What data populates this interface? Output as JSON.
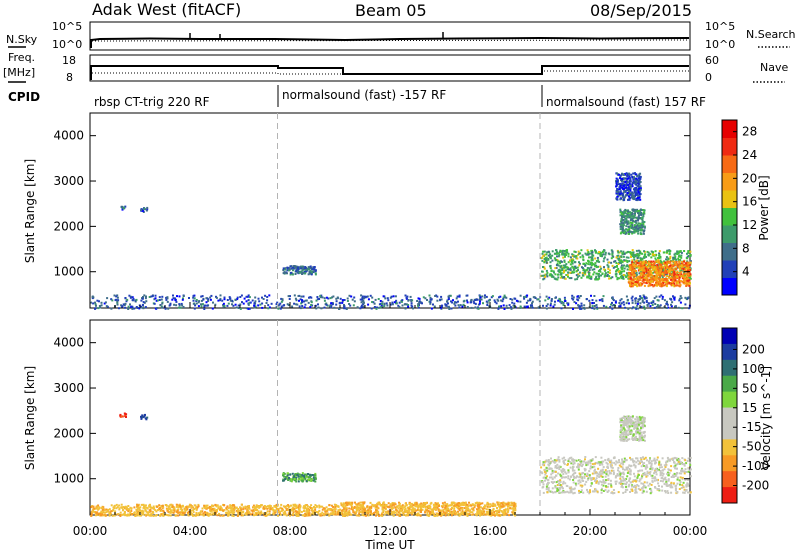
{
  "header": {
    "station": "Adak West (fitACF)",
    "beam": "Beam 05",
    "date": "08/Sep/2015"
  },
  "top_panel": {
    "nsky_label": "N.Sky",
    "nsky_top": "10^5",
    "nsky_bottom": "10^0",
    "nsearch_label": "N.Search",
    "nsearch_top": "10^5",
    "nsearch_bottom": "10^0"
  },
  "freq_panel": {
    "freq_label": "Freq.",
    "freq_unit": "[MHz]",
    "freq_top": "18",
    "freq_bottom": "8",
    "nave_label": "Nave",
    "nave_top": "60",
    "nave_bottom": "0"
  },
  "cpid_panel": {
    "label": "CPID",
    "segments": [
      {
        "text": "rbsp CT-trig 220 RF"
      },
      {
        "text": "normalsound (fast) -157 RF"
      },
      {
        "text": "normalsound (fast) 157 RF"
      }
    ]
  },
  "colors": {
    "power_scale": [
      "#0000ff",
      "#2140b8",
      "#3f6e8a",
      "#3d9b6b",
      "#41c13d",
      "#e9c212",
      "#f89c17",
      "#f76a15",
      "#ef2a12",
      "#e60000"
    ],
    "velocity_scale": [
      "#0000b4",
      "#1c3ca0",
      "#2f6f73",
      "#4aa948",
      "#7fd63d",
      "#c8c8c0",
      "#c8c8c0",
      "#f2c23a",
      "#f79a25",
      "#f7601e",
      "#ee1e14"
    ],
    "vertical_marker": "#b4b4b4"
  },
  "chart_data": [
    {
      "type": "heatmap",
      "title": "Power",
      "xlabel": "",
      "ylabel": "Slant Range [km]",
      "xlim": [
        "00:00",
        "24:00"
      ],
      "ylim": [
        200,
        4500
      ],
      "y_ticks": [
        "1000",
        "2000",
        "3000",
        "4000"
      ],
      "colorbar": {
        "label": "Power [dB]",
        "range": [
          0,
          30
        ],
        "ticks": [
          "4",
          "8",
          "12",
          "16",
          "20",
          "24",
          "28"
        ]
      },
      "vertical_markers": [
        "07:30",
        "18:00"
      ],
      "regions": [
        {
          "x": [
            "01:10",
            "01:25"
          ],
          "y": [
            2380,
            2460
          ],
          "level": 6
        },
        {
          "x": [
            "02:00",
            "02:15"
          ],
          "y": [
            2330,
            2430
          ],
          "level": 6
        },
        {
          "x": [
            "07:40",
            "09:00"
          ],
          "y": [
            960,
            1150
          ],
          "level": 7
        },
        {
          "x": [
            "00:00",
            "24:00"
          ],
          "y": [
            200,
            500
          ],
          "level": 6
        },
        {
          "x": [
            "18:00",
            "24:00"
          ],
          "y": [
            850,
            1500
          ],
          "level": 12
        },
        {
          "x": [
            "21:30",
            "24:00"
          ],
          "y": [
            700,
            1250
          ],
          "level": 21
        },
        {
          "x": [
            "21:10",
            "22:10"
          ],
          "y": [
            1850,
            2400
          ],
          "level": 10
        },
        {
          "x": [
            "21:00",
            "22:00"
          ],
          "y": [
            2600,
            3200
          ],
          "level": 5
        }
      ]
    },
    {
      "type": "heatmap",
      "title": "Velocity",
      "xlabel": "Time UT",
      "ylabel": "Slant Range [km]",
      "xlim": [
        "00:00",
        "24:00"
      ],
      "ylim": [
        200,
        4500
      ],
      "x_ticks": [
        "00:00",
        "04:00",
        "08:00",
        "12:00",
        "16:00",
        "20:00",
        "00:00"
      ],
      "y_ticks": [
        "1000",
        "2000",
        "3000",
        "4000"
      ],
      "colorbar": {
        "label": "Velocity [m s^-1]",
        "ticks": [
          "200",
          "100",
          "50",
          "15",
          "-15",
          "-50",
          "-100",
          "-200"
        ]
      },
      "vertical_markers": [
        "07:30",
        "18:00"
      ],
      "regions": [
        {
          "x": [
            "01:10",
            "01:25"
          ],
          "y": [
            2380,
            2460
          ],
          "velocity": -150
        },
        {
          "x": [
            "02:00",
            "02:15"
          ],
          "y": [
            2330,
            2430
          ],
          "velocity": 80
        },
        {
          "x": [
            "07:40",
            "09:00"
          ],
          "y": [
            960,
            1150
          ],
          "velocity": 40
        },
        {
          "x": [
            "00:00",
            "10:00"
          ],
          "y": [
            200,
            450
          ],
          "velocity": -40
        },
        {
          "x": [
            "10:00",
            "17:00"
          ],
          "y": [
            200,
            500
          ],
          "velocity": -45
        },
        {
          "x": [
            "18:00",
            "24:00"
          ],
          "y": [
            700,
            1500
          ],
          "velocity": 0
        },
        {
          "x": [
            "21:10",
            "22:10"
          ],
          "y": [
            1850,
            2400
          ],
          "velocity": 5
        }
      ]
    }
  ]
}
